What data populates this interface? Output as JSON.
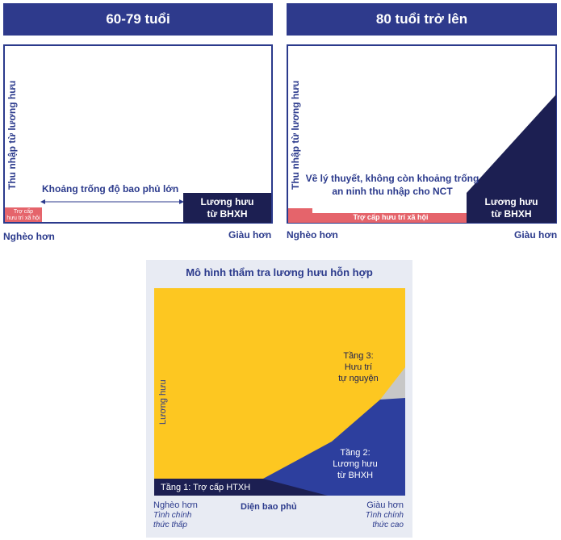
{
  "left_panel": {
    "title": "60-79 tuổi",
    "y_label": "Thu nhập từ lương hưu",
    "gap_label": "Khoảng trống độ bao phủ lớn",
    "social_label_1": "Trợ cấp",
    "social_label_2": "hưu trí xã hội",
    "pension_label_1": "Lương hưu",
    "pension_label_2": "từ BHXH",
    "poorer": "Nghèo hơn",
    "richer": "Giàu hơn"
  },
  "right_panel": {
    "title": "80 tuổi trở lên",
    "y_label": "Thu nhập từ lương hưu",
    "note_1": "Về lý thuyết, không còn khoảng trống",
    "note_2": "an ninh thu nhập cho NCT",
    "social_label": "Trợ cấp hưu trí xã hội",
    "pension_label_1": "Lương hưu",
    "pension_label_2": "từ BHXH",
    "poorer": "Nghèo hơn",
    "richer": "Giàu hơn"
  },
  "bottom_panel": {
    "title": "Mô hình thẩm tra lương hưu hỗn hợp",
    "y_label": "Lương hưu",
    "tier1": "Tầng 1: Trợ cấp HTXH",
    "tier2_1": "Tầng 2:",
    "tier2_2": "Lương hưu",
    "tier2_3": "từ BHXH",
    "tier3_1": "Tầng 3:",
    "tier3_2": "Hưu trí",
    "tier3_3": "tự nguyện",
    "x_label": "Diện bao phủ",
    "poorer": "Nghèo hơn",
    "poorer_sub_1": "Tình chính",
    "poorer_sub_2": "thức thấp",
    "richer": "Giàu hơn",
    "richer_sub_1": "Tình chính",
    "richer_sub_2": "thức cao"
  },
  "colors": {
    "navy": "#1c1f52",
    "header_blue": "#2e3a8c",
    "coral": "#e5646b",
    "yellow": "#fdc721",
    "royal_blue": "#2d3f9e",
    "grey": "#c7c7c7",
    "panel_bg": "#e8ebf3"
  }
}
